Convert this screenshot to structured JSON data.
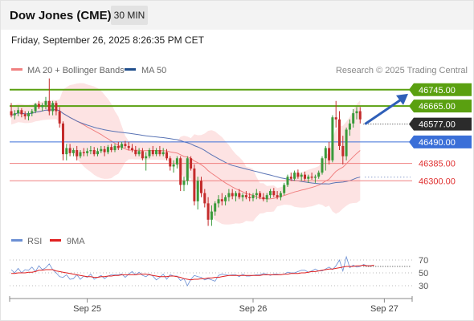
{
  "header": {
    "title": "Dow Jones (CME)",
    "timeframe": "30 MIN",
    "datetime": "Friday, September 26, 2025 8:26:35 PM CET"
  },
  "credit": "Research © 2025 Trading Central",
  "colors": {
    "bull": "#3a9a3a",
    "bear": "#c42b2b",
    "ma20": "#f08080",
    "bollinger_fill": "#fde3e3",
    "ma50": "#5a74b5",
    "resistance": "#5aa010",
    "pivot": "#3a6fd8",
    "support": "#f08080",
    "arrow": "#2f5fb8",
    "rsi": "#6b8fd4",
    "rsi_ma": "#e02020"
  },
  "chart_data": [
    {
      "type": "candlestick",
      "legend": [
        {
          "label": "MA 20 + Bollinger Bands",
          "color": "#f08080"
        },
        {
          "label": "MA 50",
          "color": "#1f4e8c"
        }
      ],
      "ylim": [
        46070,
        46795
      ],
      "x_ticks": [
        {
          "index": 22,
          "label": "Sep 25"
        },
        {
          "index": 70,
          "label": "Sep 26"
        },
        {
          "index": 108,
          "label": "Sep 27"
        }
      ],
      "levels": [
        {
          "value": 46745.0,
          "label": "46745.00",
          "kind": "resistance"
        },
        {
          "value": 46665.0,
          "label": "46665.00",
          "kind": "resistance"
        },
        {
          "value": 46577.0,
          "label": "46577.00",
          "kind": "last"
        },
        {
          "value": 46490.0,
          "label": "46490.00",
          "kind": "pivot"
        },
        {
          "value": 46385.0,
          "label": "46385.00",
          "kind": "support"
        },
        {
          "value": 46300.0,
          "label": "46300.00",
          "kind": "support"
        }
      ],
      "projection": {
        "from": 46577,
        "to": 46713
      },
      "candles": [
        [
          46640,
          46680,
          46610,
          46620
        ],
        [
          46620,
          46645,
          46600,
          46630
        ],
        [
          46630,
          46660,
          46615,
          46645
        ],
        [
          46645,
          46655,
          46610,
          46625
        ],
        [
          46625,
          46640,
          46600,
          46615
        ],
        [
          46615,
          46640,
          46595,
          46630
        ],
        [
          46630,
          46650,
          46615,
          46640
        ],
        [
          46640,
          46680,
          46630,
          46675
        ],
        [
          46675,
          46690,
          46650,
          46660
        ],
        [
          46660,
          46680,
          46640,
          46670
        ],
        [
          46670,
          46710,
          46650,
          46690
        ],
        [
          46690,
          46800,
          46620,
          46640
        ],
        [
          46640,
          46690,
          46620,
          46680
        ],
        [
          46680,
          46690,
          46620,
          46640
        ],
        [
          46640,
          46660,
          46560,
          46580
        ],
        [
          46580,
          46590,
          46400,
          46430
        ],
        [
          46430,
          46480,
          46400,
          46460
        ],
        [
          46460,
          46480,
          46420,
          46435
        ],
        [
          46435,
          46460,
          46420,
          46450
        ],
        [
          46450,
          46470,
          46400,
          46420
        ],
        [
          46420,
          46450,
          46410,
          46440
        ],
        [
          46440,
          46460,
          46420,
          46435
        ],
        [
          46435,
          46460,
          46420,
          46445
        ],
        [
          46445,
          46470,
          46430,
          46450
        ],
        [
          46450,
          46465,
          46420,
          46430
        ],
        [
          46430,
          46460,
          46420,
          46445
        ],
        [
          46445,
          46470,
          46435,
          46455
        ],
        [
          46455,
          46470,
          46420,
          46440
        ],
        [
          46440,
          46475,
          46430,
          46465
        ],
        [
          46465,
          46480,
          46440,
          46450
        ],
        [
          46450,
          46480,
          46440,
          46470
        ],
        [
          46470,
          46490,
          46450,
          46460
        ],
        [
          46460,
          46490,
          46450,
          46480
        ],
        [
          46480,
          46495,
          46460,
          46470
        ],
        [
          46470,
          46490,
          46450,
          46460
        ],
        [
          46460,
          46480,
          46440,
          46450
        ],
        [
          46450,
          46470,
          46420,
          46430
        ],
        [
          46430,
          46460,
          46420,
          46445
        ],
        [
          46445,
          46460,
          46400,
          46410
        ],
        [
          46410,
          46440,
          46350,
          46420
        ],
        [
          46420,
          46460,
          46410,
          46450
        ],
        [
          46450,
          46470,
          46420,
          46430
        ],
        [
          46430,
          46460,
          46420,
          46450
        ],
        [
          46450,
          46470,
          46420,
          46430
        ],
        [
          46430,
          46460,
          46420,
          46440
        ],
        [
          46440,
          46455,
          46400,
          46410
        ],
        [
          46410,
          46420,
          46350,
          46370
        ],
        [
          46370,
          46400,
          46340,
          46380
        ],
        [
          46380,
          46420,
          46360,
          46410
        ],
        [
          46410,
          46420,
          46250,
          46280
        ],
        [
          46280,
          46320,
          46250,
          46300
        ],
        [
          46300,
          46420,
          46280,
          46410
        ],
        [
          46410,
          46420,
          46350,
          46360
        ],
        [
          46360,
          46380,
          46180,
          46200
        ],
        [
          46200,
          46320,
          46160,
          46300
        ],
        [
          46300,
          46320,
          46220,
          46240
        ],
        [
          46240,
          46260,
          46170,
          46190
        ],
        [
          46190,
          46220,
          46080,
          46110
        ],
        [
          46110,
          46180,
          46080,
          46150
        ],
        [
          46150,
          46200,
          46130,
          46190
        ],
        [
          46190,
          46230,
          46170,
          46210
        ],
        [
          46210,
          46240,
          46180,
          46200
        ],
        [
          46200,
          46230,
          46180,
          46220
        ],
        [
          46220,
          46260,
          46200,
          46240
        ],
        [
          46240,
          46260,
          46210,
          46225
        ],
        [
          46225,
          46250,
          46200,
          46240
        ],
        [
          46240,
          46260,
          46210,
          46220
        ],
        [
          46220,
          46240,
          46200,
          46230
        ],
        [
          46230,
          46250,
          46210,
          46220
        ],
        [
          46220,
          46240,
          46200,
          46215
        ],
        [
          46215,
          46240,
          46200,
          46230
        ],
        [
          46230,
          46260,
          46210,
          46240
        ],
        [
          46240,
          46250,
          46210,
          46220
        ],
        [
          46220,
          46240,
          46200,
          46210
        ],
        [
          46210,
          46240,
          46195,
          46230
        ],
        [
          46230,
          46260,
          46215,
          46250
        ],
        [
          46250,
          46265,
          46220,
          46230
        ],
        [
          46230,
          46250,
          46210,
          46220
        ],
        [
          46220,
          46250,
          46205,
          46240
        ],
        [
          46240,
          46290,
          46230,
          46280
        ],
        [
          46280,
          46330,
          46270,
          46320
        ],
        [
          46320,
          46340,
          46300,
          46310
        ],
        [
          46310,
          46350,
          46300,
          46340
        ],
        [
          46340,
          46355,
          46310,
          46320
        ],
        [
          46320,
          46340,
          46300,
          46330
        ],
        [
          46330,
          46345,
          46300,
          46310
        ],
        [
          46310,
          46330,
          46290,
          46320
        ],
        [
          46320,
          46340,
          46305,
          46315
        ],
        [
          46315,
          46330,
          46290,
          46320
        ],
        [
          46320,
          46350,
          46310,
          46340
        ],
        [
          46340,
          46420,
          46330,
          46410
        ],
        [
          46410,
          46470,
          46350,
          46460
        ],
        [
          46460,
          46490,
          46380,
          46400
        ],
        [
          46400,
          46620,
          46390,
          46610
        ],
        [
          46610,
          46690,
          46560,
          46600
        ],
        [
          46600,
          46640,
          46450,
          46470
        ],
        [
          46470,
          46520,
          46380,
          46420
        ],
        [
          46420,
          46560,
          46400,
          46550
        ],
        [
          46550,
          46600,
          46520,
          46580
        ],
        [
          46580,
          46650,
          46560,
          46630
        ],
        [
          46630,
          46660,
          46600,
          46640
        ],
        [
          46640,
          46660,
          46580,
          46600
        ]
      ]
    },
    {
      "type": "line",
      "legend": [
        {
          "label": "RSI",
          "color": "#6b8fd4"
        },
        {
          "label": "9MA",
          "color": "#e02020"
        }
      ],
      "ylim": [
        20,
        80
      ],
      "y_ticks": [
        70,
        50,
        30
      ],
      "y_tick_labels": [
        "70",
        "50",
        "30"
      ],
      "series": [
        {
          "name": "RSI",
          "values": [
            55,
            50,
            57,
            50,
            55,
            54,
            59,
            52,
            61,
            55,
            58,
            64,
            55,
            50,
            44,
            43,
            47,
            40,
            41,
            47,
            40,
            45,
            43,
            48,
            40,
            43,
            46,
            41,
            45,
            47,
            47,
            47,
            48,
            43,
            48,
            52,
            47,
            51,
            46,
            44,
            48,
            45,
            39,
            43,
            48,
            40,
            47,
            45,
            45,
            38,
            41,
            30,
            40,
            46,
            44,
            43,
            39,
            41,
            39,
            37,
            46,
            48,
            47,
            46,
            47,
            47,
            44,
            48,
            45,
            45,
            46,
            47,
            47,
            49,
            48,
            46,
            48,
            48,
            47,
            48,
            51,
            50,
            50,
            52,
            54,
            54,
            51,
            53,
            56,
            53,
            53,
            56,
            59,
            55,
            61,
            70,
            53,
            75,
            58,
            62,
            59,
            60,
            63,
            61,
            61,
            62
          ]
        },
        {
          "name": "9MA",
          "values": [
            49,
            49,
            50,
            50,
            50,
            51,
            51,
            52,
            54,
            54,
            55,
            55,
            55,
            53,
            52,
            51,
            50,
            49,
            48,
            47,
            46,
            45,
            44,
            44,
            43,
            43,
            44,
            44,
            45,
            45,
            46,
            46,
            47,
            47,
            47,
            47,
            47,
            48,
            48,
            48,
            47,
            46,
            45,
            44,
            44,
            44,
            45,
            45,
            44,
            43,
            41,
            40,
            39,
            40,
            40,
            41,
            41,
            42,
            42,
            43,
            43,
            44,
            45,
            46,
            46,
            46,
            46,
            46,
            46,
            46,
            46,
            46,
            46,
            47,
            47,
            47,
            47,
            47,
            47,
            48,
            48,
            49,
            49,
            49,
            50,
            50,
            51,
            52,
            52,
            53,
            54,
            55,
            56,
            56,
            57,
            58,
            59,
            60,
            60,
            60,
            61,
            61,
            62,
            61,
            61,
            62
          ]
        }
      ]
    }
  ]
}
